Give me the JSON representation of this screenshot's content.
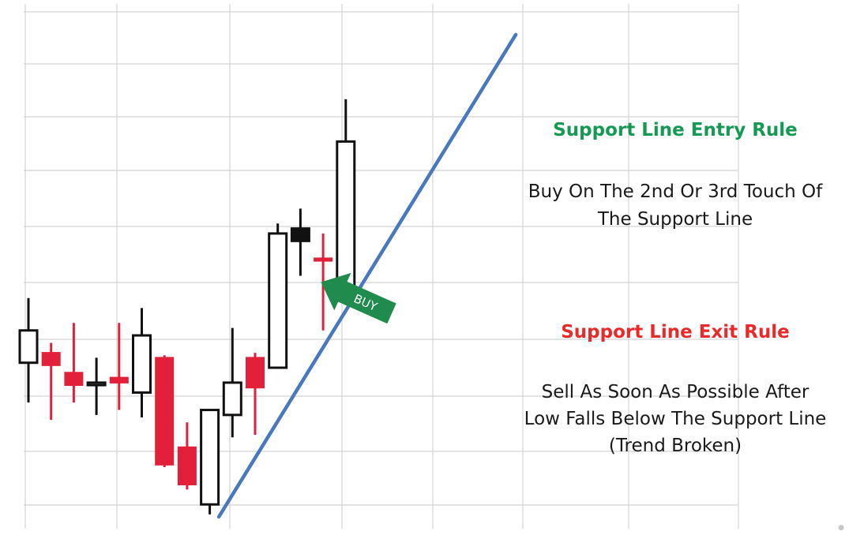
{
  "colors": {
    "bull_candle": "#111111",
    "bear_candle": "#e3203a",
    "support_line": "#4a78bf",
    "buy_arrow": "#1f8b4c",
    "entry_title": "#159a54",
    "exit_title": "#ea2a2a",
    "grid": "#d4d4d4"
  },
  "chart_data": {
    "type": "candlestick",
    "title": "",
    "xlabel": "",
    "ylabel": "",
    "grid": true,
    "ylim": [
      0,
      100
    ],
    "candles": [
      {
        "open": 37.5,
        "close": 31,
        "high": 44,
        "low": 23,
        "direction": "bull"
      },
      {
        "open": 33,
        "close": 30.5,
        "high": 35,
        "low": 19.5,
        "direction": "bear"
      },
      {
        "open": 29,
        "close": 26.5,
        "high": 39,
        "low": 23,
        "direction": "bear"
      },
      {
        "open": 27,
        "close": 26.5,
        "high": 32,
        "low": 20.5,
        "direction": "bull"
      },
      {
        "open": 28,
        "close": 27,
        "high": 39,
        "low": 21.5,
        "direction": "bear"
      },
      {
        "open": 36.5,
        "close": 25,
        "high": 42,
        "low": 20,
        "direction": "bull"
      },
      {
        "open": 32,
        "close": 10.5,
        "high": 32.5,
        "low": 10,
        "direction": "bear"
      },
      {
        "open": 14,
        "close": 6.5,
        "high": 19,
        "low": 5.5,
        "direction": "bear"
      },
      {
        "open": 21.5,
        "close": 2.5,
        "high": 21.5,
        "low": 0.5,
        "direction": "bull"
      },
      {
        "open": 27,
        "close": 20.5,
        "high": 38,
        "low": 16,
        "direction": "bull"
      },
      {
        "open": 32,
        "close": 26,
        "high": 33,
        "low": 16.5,
        "direction": "bear"
      },
      {
        "open": 57,
        "close": 30,
        "high": 59,
        "low": 30,
        "direction": "bull"
      },
      {
        "open": 58,
        "close": 55.5,
        "high": 62,
        "low": 48.5,
        "direction": "bull"
      },
      {
        "open": 52,
        "close": 51.5,
        "high": 57,
        "low": 37.5,
        "direction": "bear"
      },
      {
        "open": 75.5,
        "close": 46,
        "high": 84,
        "low": 45,
        "direction": "bull"
      }
    ],
    "support_line": {
      "start": {
        "index": 8.4,
        "value": 0
      },
      "end": {
        "index": 21.5,
        "value": 97
      }
    },
    "annotations": [
      {
        "text": "BUY",
        "index": 14.5,
        "value": 44
      }
    ]
  },
  "panel": {
    "entry_title": "Support Line Entry Rule",
    "entry_lines": [
      "Buy On The 2nd Or 3rd Touch Of",
      "The Support Line"
    ],
    "exit_title": "Support Line Exit Rule",
    "exit_lines": [
      "Sell As Soon As Possible After",
      "Low Falls Below The Support Line",
      "(Trend Broken)"
    ]
  }
}
